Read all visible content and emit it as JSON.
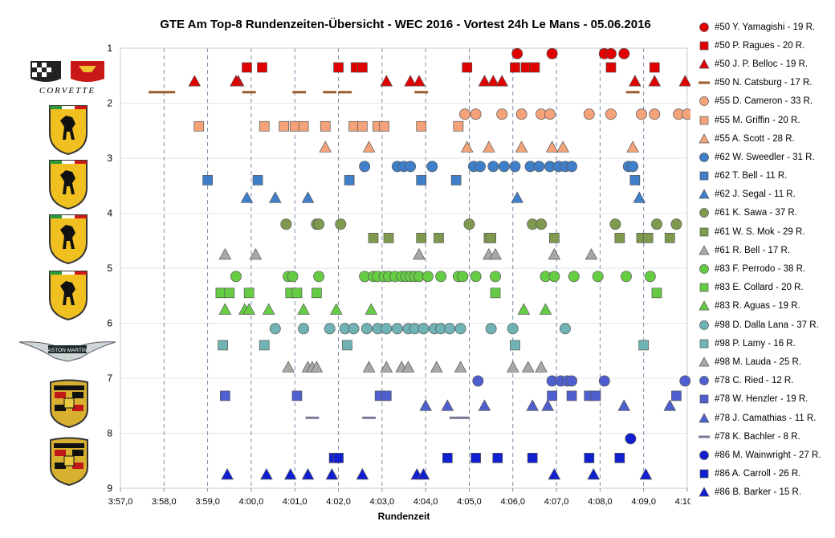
{
  "chart_data": {
    "type": "scatter",
    "title": "GTE Am  Top-8 Rundenzeiten-Übersicht  - WEC 2016  - Vortest 24h Le Mans  - 05.06.2016",
    "xlabel": "Rundenzeit",
    "x_tick_labels": [
      "3:57,0",
      "3:58,0",
      "3:59,0",
      "4:00,0",
      "4:01,0",
      "4:02,0",
      "4:03,0",
      "4:04,0",
      "4:05,0",
      "4:06,0",
      "4:07,0",
      "4:08,0",
      "4:09,0",
      "4:10,0"
    ],
    "xlim_seconds": [
      237,
      250
    ],
    "y_tick_labels": [
      "1",
      "2",
      "3",
      "4",
      "5",
      "6",
      "7",
      "8",
      "9"
    ],
    "ylim": [
      1,
      9
    ],
    "y_reversed": true,
    "grid": "vertical dashed lines",
    "legend_position": "right",
    "series": [
      {
        "name": "#50 Y. Yamagishi - 19 R.",
        "color": "#e00000",
        "marker": "circle",
        "y": 1.1,
        "x": [
          246.1,
          246.9,
          248.1,
          248.25,
          248.55
        ]
      },
      {
        "name": "#50 P. Ragues - 20 R.",
        "color": "#e00000",
        "marker": "square",
        "y": 1.35,
        "x": [
          239.9,
          240.25,
          242.0,
          242.4,
          242.55,
          244.95,
          246.05,
          246.3,
          246.5,
          248.25,
          249.25
        ]
      },
      {
        "name": "#50 J. P. Belloc - 19 R.",
        "color": "#e00000",
        "marker": "triangle",
        "y": 1.6,
        "x": [
          238.7,
          239.7,
          239.65,
          243.1,
          243.65,
          243.85,
          245.35,
          245.55,
          245.75,
          248.8,
          249.25,
          249.95
        ]
      },
      {
        "name": "#50 N. Catsburg - 17 R.",
        "color": "#9a5a2a",
        "marker": "dash",
        "y": 1.8,
        "x": [
          237.8,
          238.1,
          239.95,
          241.1,
          241.8,
          242.15,
          243.9,
          248.75
        ]
      },
      {
        "name": "#55 D. Cameron - 33 R.",
        "color": "#f4a27a",
        "marker": "circle",
        "y": 2.2,
        "x": [
          244.9,
          245.15,
          245.75,
          246.2,
          246.65,
          246.85,
          247.75,
          248.25,
          248.95,
          249.25,
          249.8,
          250.0
        ]
      },
      {
        "name": "#55 M. Griffin - 20 R.",
        "color": "#f4a27a",
        "marker": "square",
        "y": 2.42,
        "x": [
          238.8,
          240.3,
          240.75,
          241.0,
          241.2,
          241.7,
          242.35,
          242.55,
          242.9,
          243.05,
          243.9,
          244.75
        ]
      },
      {
        "name": "#55 A. Scott - 28 R.",
        "color": "#f4a27a",
        "marker": "triangle",
        "y": 2.8,
        "x": [
          241.7,
          242.7,
          244.95,
          245.45,
          246.2,
          246.9,
          247.15,
          248.75
        ]
      },
      {
        "name": "#62 W. Sweedler - 31 R.",
        "color": "#3f7fc9",
        "marker": "circle",
        "y": 3.15,
        "x": [
          242.6,
          243.35,
          243.5,
          243.65,
          244.15,
          245.1,
          245.25,
          245.55,
          245.8,
          246.05,
          246.4,
          246.6,
          246.85,
          247.05,
          247.2,
          247.35,
          248.65,
          248.75
        ]
      },
      {
        "name": "#62 T. Bell - 11 R.",
        "color": "#3f7fc9",
        "marker": "square",
        "y": 3.4,
        "x": [
          239.0,
          240.15,
          242.25,
          243.9,
          244.7,
          248.8
        ]
      },
      {
        "name": "#62 J. Segal - 11 R.",
        "color": "#3f7fc9",
        "marker": "triangle",
        "y": 3.72,
        "x": [
          239.9,
          240.55,
          241.3,
          246.1,
          248.9
        ]
      },
      {
        "name": "#61 K. Sawa - 37 R.",
        "color": "#7f9a4f",
        "marker": "circle",
        "y": 4.2,
        "x": [
          240.8,
          241.5,
          241.55,
          242.05,
          245.0,
          246.45,
          246.65,
          248.35,
          249.3,
          249.75
        ]
      },
      {
        "name": "#61 W. S. Mok - 29 R.",
        "color": "#7f9a4f",
        "marker": "square",
        "y": 4.45,
        "x": [
          242.8,
          243.15,
          243.9,
          244.3,
          245.45,
          245.5,
          246.95,
          248.45,
          248.95,
          249.1,
          249.6
        ]
      },
      {
        "name": "#61 R. Bell - 17 R.",
        "color": "#a8a8a8",
        "marker": "triangle",
        "y": 4.75,
        "x": [
          239.4,
          240.1,
          243.85,
          245.45,
          245.6,
          246.95,
          247.8
        ]
      },
      {
        "name": "#83 F. Perrodo - 38 R.",
        "color": "#66cc44",
        "marker": "circle",
        "y": 5.15,
        "x": [
          239.65,
          240.85,
          240.95,
          241.55,
          242.6,
          242.8,
          242.9,
          243.05,
          243.15,
          243.3,
          243.45,
          243.55,
          243.65,
          243.75,
          243.85,
          244.05,
          244.35,
          244.75,
          244.85,
          245.15,
          245.6,
          246.75,
          246.95,
          247.4,
          247.95,
          248.6,
          249.15
        ]
      },
      {
        "name": "#83 E. Collard - 20 R.",
        "color": "#66cc44",
        "marker": "square",
        "y": 5.45,
        "x": [
          239.3,
          239.5,
          239.95,
          240.9,
          241.05,
          241.5,
          245.6,
          249.3
        ]
      },
      {
        "name": "#83 R. Aguas - 19 R.",
        "color": "#66cc44",
        "marker": "triangle",
        "y": 5.75,
        "x": [
          239.4,
          239.85,
          239.95,
          240.4,
          241.2,
          241.95,
          242.75,
          246.25,
          246.75
        ]
      },
      {
        "name": "#98 D. Dalla Lana - 37 R.",
        "color": "#6fb3b5",
        "marker": "circle",
        "y": 6.1,
        "x": [
          240.55,
          241.2,
          241.8,
          242.15,
          242.35,
          242.65,
          242.9,
          243.1,
          243.35,
          243.6,
          243.75,
          243.95,
          244.2,
          244.35,
          244.55,
          244.8,
          245.5,
          246.0,
          247.2
        ]
      },
      {
        "name": "#98 P. Lamy - 16 R.",
        "color": "#6fb3b5",
        "marker": "square",
        "y": 6.4,
        "x": [
          239.35,
          240.3,
          242.2,
          246.05,
          249.0
        ]
      },
      {
        "name": "#98 M. Lauda - 25 R.",
        "color": "#a8a8a8",
        "marker": "triangle",
        "y": 6.8,
        "x": [
          240.85,
          241.3,
          241.4,
          241.5,
          242.7,
          243.1,
          243.45,
          243.6,
          244.25,
          244.8,
          246.0,
          246.35,
          246.65
        ]
      },
      {
        "name": "#78 C. Ried - 12 R.",
        "color": "#4f5fcf",
        "marker": "circle",
        "y": 7.05,
        "x": [
          245.2,
          246.9,
          247.1,
          247.25,
          247.35,
          248.1,
          249.95
        ]
      },
      {
        "name": "#78 W. Henzler - 19 R.",
        "color": "#4f5fcf",
        "marker": "square",
        "y": 7.32,
        "x": [
          239.4,
          241.05,
          242.95,
          243.1,
          246.9,
          247.35,
          247.75,
          247.9,
          249.75
        ]
      },
      {
        "name": "#78 J. Camathias - 11 R.",
        "color": "#4f5fcf",
        "marker": "triangle",
        "y": 7.5,
        "x": [
          244.0,
          244.5,
          245.35,
          246.45,
          246.8,
          248.55,
          249.6
        ]
      },
      {
        "name": "#78 K. Bachler - 8 R.",
        "color": "#7a7a9a",
        "marker": "dash",
        "y": 7.72,
        "x": [
          241.4,
          242.7,
          244.7,
          244.85
        ]
      },
      {
        "name": "#86 M. Wainwright - 27 R.",
        "color": "#1020d0",
        "marker": "circle",
        "y": 8.1,
        "x": [
          248.7
        ]
      },
      {
        "name": "#86 A. Carroll - 26 R.",
        "color": "#1020d0",
        "marker": "square",
        "y": 8.45,
        "x": [
          241.9,
          242.0,
          244.5,
          245.15,
          245.65,
          246.45,
          247.75,
          248.45
        ]
      },
      {
        "name": "#86 B. Barker - 15 R.",
        "color": "#1020d0",
        "marker": "triangle",
        "y": 8.75,
        "x": [
          239.45,
          240.35,
          240.9,
          241.3,
          241.85,
          242.55,
          243.8,
          243.95,
          246.95,
          247.85,
          249.05
        ]
      }
    ]
  },
  "logos": [
    "corvette-logo",
    "ferrari-logo",
    "ferrari-logo",
    "ferrari-logo",
    "aston-martin-logo",
    "porsche-logo",
    "porsche-logo"
  ]
}
